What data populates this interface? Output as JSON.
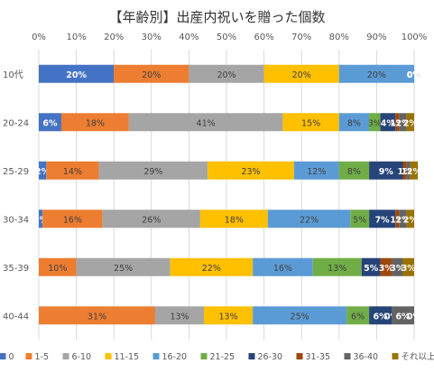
{
  "chart_data": {
    "type": "bar",
    "orientation": "horizontal",
    "stacked": "percent",
    "title": "【年齢別】出産内祝いを贈った個数",
    "categories": [
      "10代",
      "20-24",
      "25-29",
      "30-34",
      "35-39",
      "40-44"
    ],
    "x_ticks": [
      "0%",
      "10%",
      "20%",
      "30%",
      "40%",
      "50%",
      "60%",
      "70%",
      "80%",
      "90%",
      "100%"
    ],
    "xlim": [
      0,
      100
    ],
    "grid": true,
    "legend_position": "bottom",
    "series": [
      {
        "name": "0",
        "color": "#4472C4",
        "values": [
          20,
          6,
          2,
          1,
          0,
          0
        ],
        "labels": [
          "20%",
          "6%",
          "2%",
          "1%",
          "0%",
          "0%"
        ]
      },
      {
        "name": "1-5",
        "color": "#ED7D31",
        "values": [
          20,
          18,
          14,
          16,
          10,
          31
        ],
        "labels": [
          "20%",
          "18%",
          "14%",
          "16%",
          "10%",
          "31%"
        ]
      },
      {
        "name": "6-10",
        "color": "#A5A5A5",
        "values": [
          20,
          41,
          29,
          26,
          25,
          13
        ],
        "labels": [
          "20%",
          "41%",
          "29%",
          "26%",
          "25%",
          "13%"
        ]
      },
      {
        "name": "11-15",
        "color": "#FFC000",
        "values": [
          20,
          15,
          23,
          18,
          22,
          13
        ],
        "labels": [
          "20%",
          "15%",
          "23%",
          "18%",
          "22%",
          "13%"
        ]
      },
      {
        "name": "16-20",
        "color": "#5B9BD5",
        "values": [
          20,
          8,
          12,
          22,
          16,
          25
        ],
        "labels": [
          "20%",
          "8%",
          "12%",
          "22%",
          "16%",
          "25%"
        ]
      },
      {
        "name": "21-25",
        "color": "#70AD47",
        "values": [
          0,
          3,
          8,
          5,
          13,
          6
        ],
        "labels": [
          "0%",
          "3%",
          "8%",
          "5%",
          "13%",
          "6%"
        ]
      },
      {
        "name": "26-30",
        "color": "#264478",
        "values": [
          0,
          4,
          9,
          7,
          5,
          6
        ],
        "labels": [
          "0%",
          "4%",
          "9%",
          "7%",
          "5%",
          "6%"
        ]
      },
      {
        "name": "31-35",
        "color": "#9E480E",
        "values": [
          0,
          1,
          1,
          1,
          3,
          0
        ],
        "labels": [
          "0%",
          "1%",
          "1%",
          "1%",
          "3%",
          "0%"
        ]
      },
      {
        "name": "36-40",
        "color": "#636363",
        "values": [
          0,
          2,
          1,
          2,
          3,
          6
        ],
        "labels": [
          "0%",
          "2%",
          "1%",
          "2%",
          "3%",
          "6%"
        ]
      },
      {
        "name": "それ以上",
        "color": "#997300",
        "values": [
          0,
          2,
          2,
          2,
          3,
          0
        ],
        "labels": [
          "0%",
          "2%",
          "2%",
          "2%",
          "3%",
          "0%"
        ]
      }
    ]
  }
}
